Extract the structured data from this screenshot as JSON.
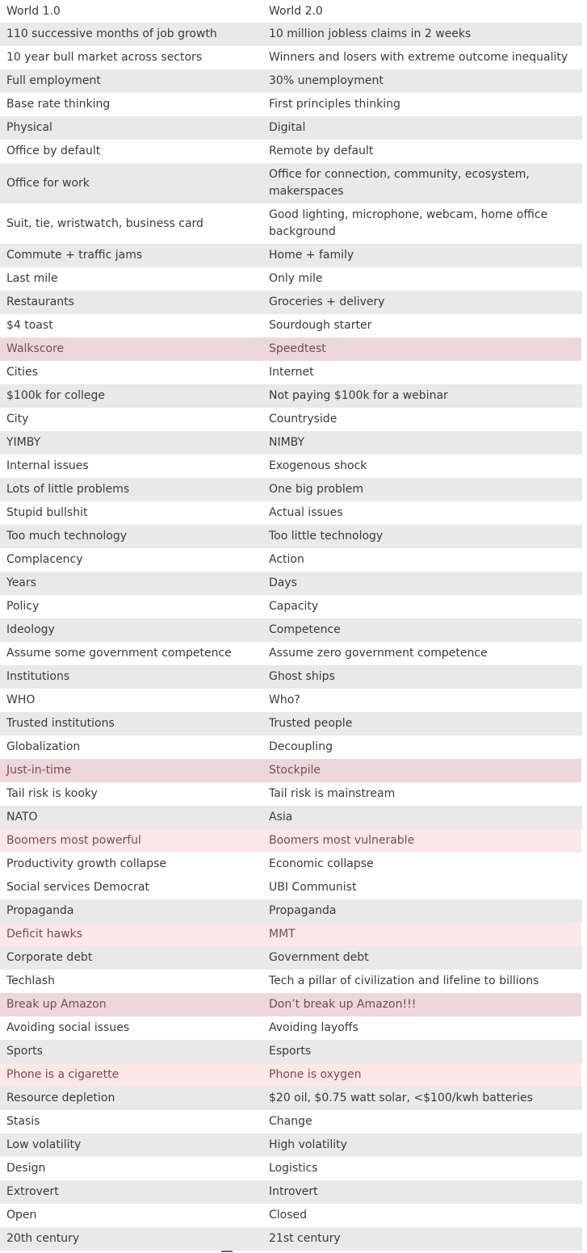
{
  "rows": [
    {
      "left": "World 1.0",
      "right": "World 2.0",
      "style": "plain"
    },
    {
      "left": "110 successive months of job growth",
      "right": "10 million jobless claims in 2 weeks",
      "style": "alt"
    },
    {
      "left": "10 year bull market across sectors",
      "right": "Winners and losers with extreme outcome inequality",
      "style": "plain"
    },
    {
      "left": "Full employment",
      "right": "30% unemployment",
      "style": "alt"
    },
    {
      "left": "Base rate thinking",
      "right": "First principles thinking",
      "style": "plain"
    },
    {
      "left": "Physical",
      "right": "Digital",
      "style": "alt"
    },
    {
      "left": "Office by default",
      "right": "Remote by default",
      "style": "plain"
    },
    {
      "left": "Office for work",
      "right": "Office for connection, community, ecosystem, makerspaces",
      "style": "alt",
      "tall": true
    },
    {
      "left": "Suit, tie, wristwatch, business card",
      "right": "Good lighting, microphone, webcam, home office background",
      "style": "plain",
      "tall": true
    },
    {
      "left": "Commute + traffic jams",
      "right": "Home + family",
      "style": "alt"
    },
    {
      "left": "Last mile",
      "right": "Only mile",
      "style": "plain"
    },
    {
      "left": "Restaurants",
      "right": "Groceries + delivery",
      "style": "alt"
    },
    {
      "left": "$4 toast",
      "right": "Sourdough starter",
      "style": "plain"
    },
    {
      "left": "Walkscore",
      "right": "Speedtest",
      "style": "hl-strong"
    },
    {
      "left": "Cities",
      "right": "Internet",
      "style": "plain"
    },
    {
      "left": "$100k for college",
      "right": "Not paying $100k for a webinar",
      "style": "alt"
    },
    {
      "left": "City",
      "right": "Countryside",
      "style": "plain"
    },
    {
      "left": "YIMBY",
      "right": "NIMBY",
      "style": "alt"
    },
    {
      "left": "Internal issues",
      "right": "Exogenous shock",
      "style": "plain"
    },
    {
      "left": "Lots of little problems",
      "right": "One big problem",
      "style": "alt"
    },
    {
      "left": "Stupid bullshit",
      "right": "Actual issues",
      "style": "plain"
    },
    {
      "left": "Too much technology",
      "right": "Too little technology",
      "style": "alt"
    },
    {
      "left": "Complacency",
      "right": "Action",
      "style": "plain"
    },
    {
      "left": "Years",
      "right": "Days",
      "style": "alt"
    },
    {
      "left": "Policy",
      "right": "Capacity",
      "style": "plain"
    },
    {
      "left": "Ideology",
      "right": "Competence",
      "style": "alt"
    },
    {
      "left": "Assume some government competence",
      "right": "Assume zero government competence",
      "style": "plain"
    },
    {
      "left": "Institutions",
      "right": "Ghost ships",
      "style": "alt"
    },
    {
      "left": "WHO",
      "right": "Who?",
      "style": "plain"
    },
    {
      "left": "Trusted institutions",
      "right": "Trusted people",
      "style": "alt"
    },
    {
      "left": "Globalization",
      "right": "Decoupling",
      "style": "plain"
    },
    {
      "left": "Just-in-time",
      "right": "Stockpile",
      "style": "hl-strong"
    },
    {
      "left": "Tail risk is kooky",
      "right": "Tail risk is mainstream",
      "style": "plain"
    },
    {
      "left": "NATO",
      "right": "Asia",
      "style": "alt"
    },
    {
      "left": "Boomers most powerful",
      "right": "Boomers most vulnerable",
      "style": "hl-light"
    },
    {
      "left": "Productivity growth collapse",
      "right": "Economic collapse",
      "style": "plain"
    },
    {
      "left": "Social services Democrat",
      "right": "UBI Communist",
      "style": "plain"
    },
    {
      "left": "Propaganda",
      "right": "Propaganda",
      "style": "alt"
    },
    {
      "left": "Deficit hawks",
      "right": "MMT",
      "style": "hl-light"
    },
    {
      "left": "Corporate debt",
      "right": "Government debt",
      "style": "alt"
    },
    {
      "left": "Techlash",
      "right": "Tech a pillar of civilization and lifeline to billions",
      "style": "plain"
    },
    {
      "left": "Break up Amazon",
      "right": "Don’t break up Amazon!!!",
      "style": "hl-strong"
    },
    {
      "left": "Avoiding social issues",
      "right": "Avoiding layoffs",
      "style": "plain"
    },
    {
      "left": "Sports",
      "right": "Esports",
      "style": "alt"
    },
    {
      "left": "Phone is a cigarette",
      "right": "Phone is oxygen",
      "style": "hl-light"
    },
    {
      "left": "Resource depletion",
      "right": "$20 oil, $0.75 watt solar, <$100/kwh batteries",
      "style": "alt"
    },
    {
      "left": "Stasis",
      "right": "Change",
      "style": "plain"
    },
    {
      "left": "Low volatility",
      "right": "High volatility",
      "style": "alt"
    },
    {
      "left": "Design",
      "right": "Logistics",
      "style": "plain"
    },
    {
      "left": "Extrovert",
      "right": "Introvert",
      "style": "alt"
    },
    {
      "left": "Open",
      "right": "Closed",
      "style": "plain"
    },
    {
      "left": "20th century",
      "right": "21st century",
      "style": "alt"
    }
  ]
}
